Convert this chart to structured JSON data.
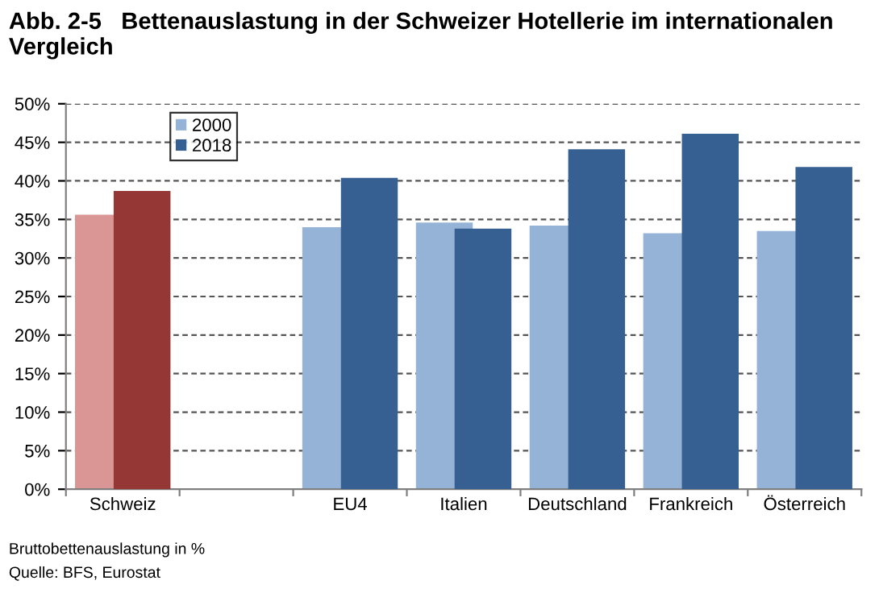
{
  "chart_data": {
    "type": "bar",
    "title": "Abb. 2-5   Bettenauslastung in der Schweizer Hotellerie im internationalen Vergleich",
    "categories": [
      "Schweiz",
      null,
      "EU4",
      "Italien",
      "Deutschland",
      "Frankreich",
      "Österreich"
    ],
    "series": [
      {
        "name": "2000",
        "color": "#95b3d7",
        "colors": [
          "#d99694",
          null,
          "#95b3d7",
          "#95b3d7",
          "#95b3d7",
          "#95b3d7",
          "#95b3d7"
        ],
        "values": [
          35.6,
          null,
          34.0,
          34.6,
          34.2,
          33.2,
          33.5
        ]
      },
      {
        "name": "2018",
        "color": "#366092",
        "colors": [
          "#953735",
          null,
          "#366092",
          "#366092",
          "#366092",
          "#366092",
          "#366092"
        ],
        "values": [
          38.7,
          null,
          40.4,
          33.8,
          44.1,
          46.1,
          41.8
        ]
      }
    ],
    "ylim": [
      0,
      50
    ],
    "yticks": [
      {
        "value": 0,
        "label": "0%"
      },
      {
        "value": 5,
        "label": "5%"
      },
      {
        "value": 10,
        "label": "10%"
      },
      {
        "value": 15,
        "label": "15%"
      },
      {
        "value": 20,
        "label": "20%"
      },
      {
        "value": 25,
        "label": "25%"
      },
      {
        "value": 30,
        "label": "30%"
      },
      {
        "value": 35,
        "label": "35%"
      },
      {
        "value": 40,
        "label": "40%"
      },
      {
        "value": 45,
        "label": "45%"
      },
      {
        "value": 50,
        "label": "50%"
      }
    ],
    "grid": "y",
    "legend": "top left",
    "annotations": [
      "Bruttobettenauslastung in %",
      "Quelle: BFS, Eurostat"
    ]
  }
}
